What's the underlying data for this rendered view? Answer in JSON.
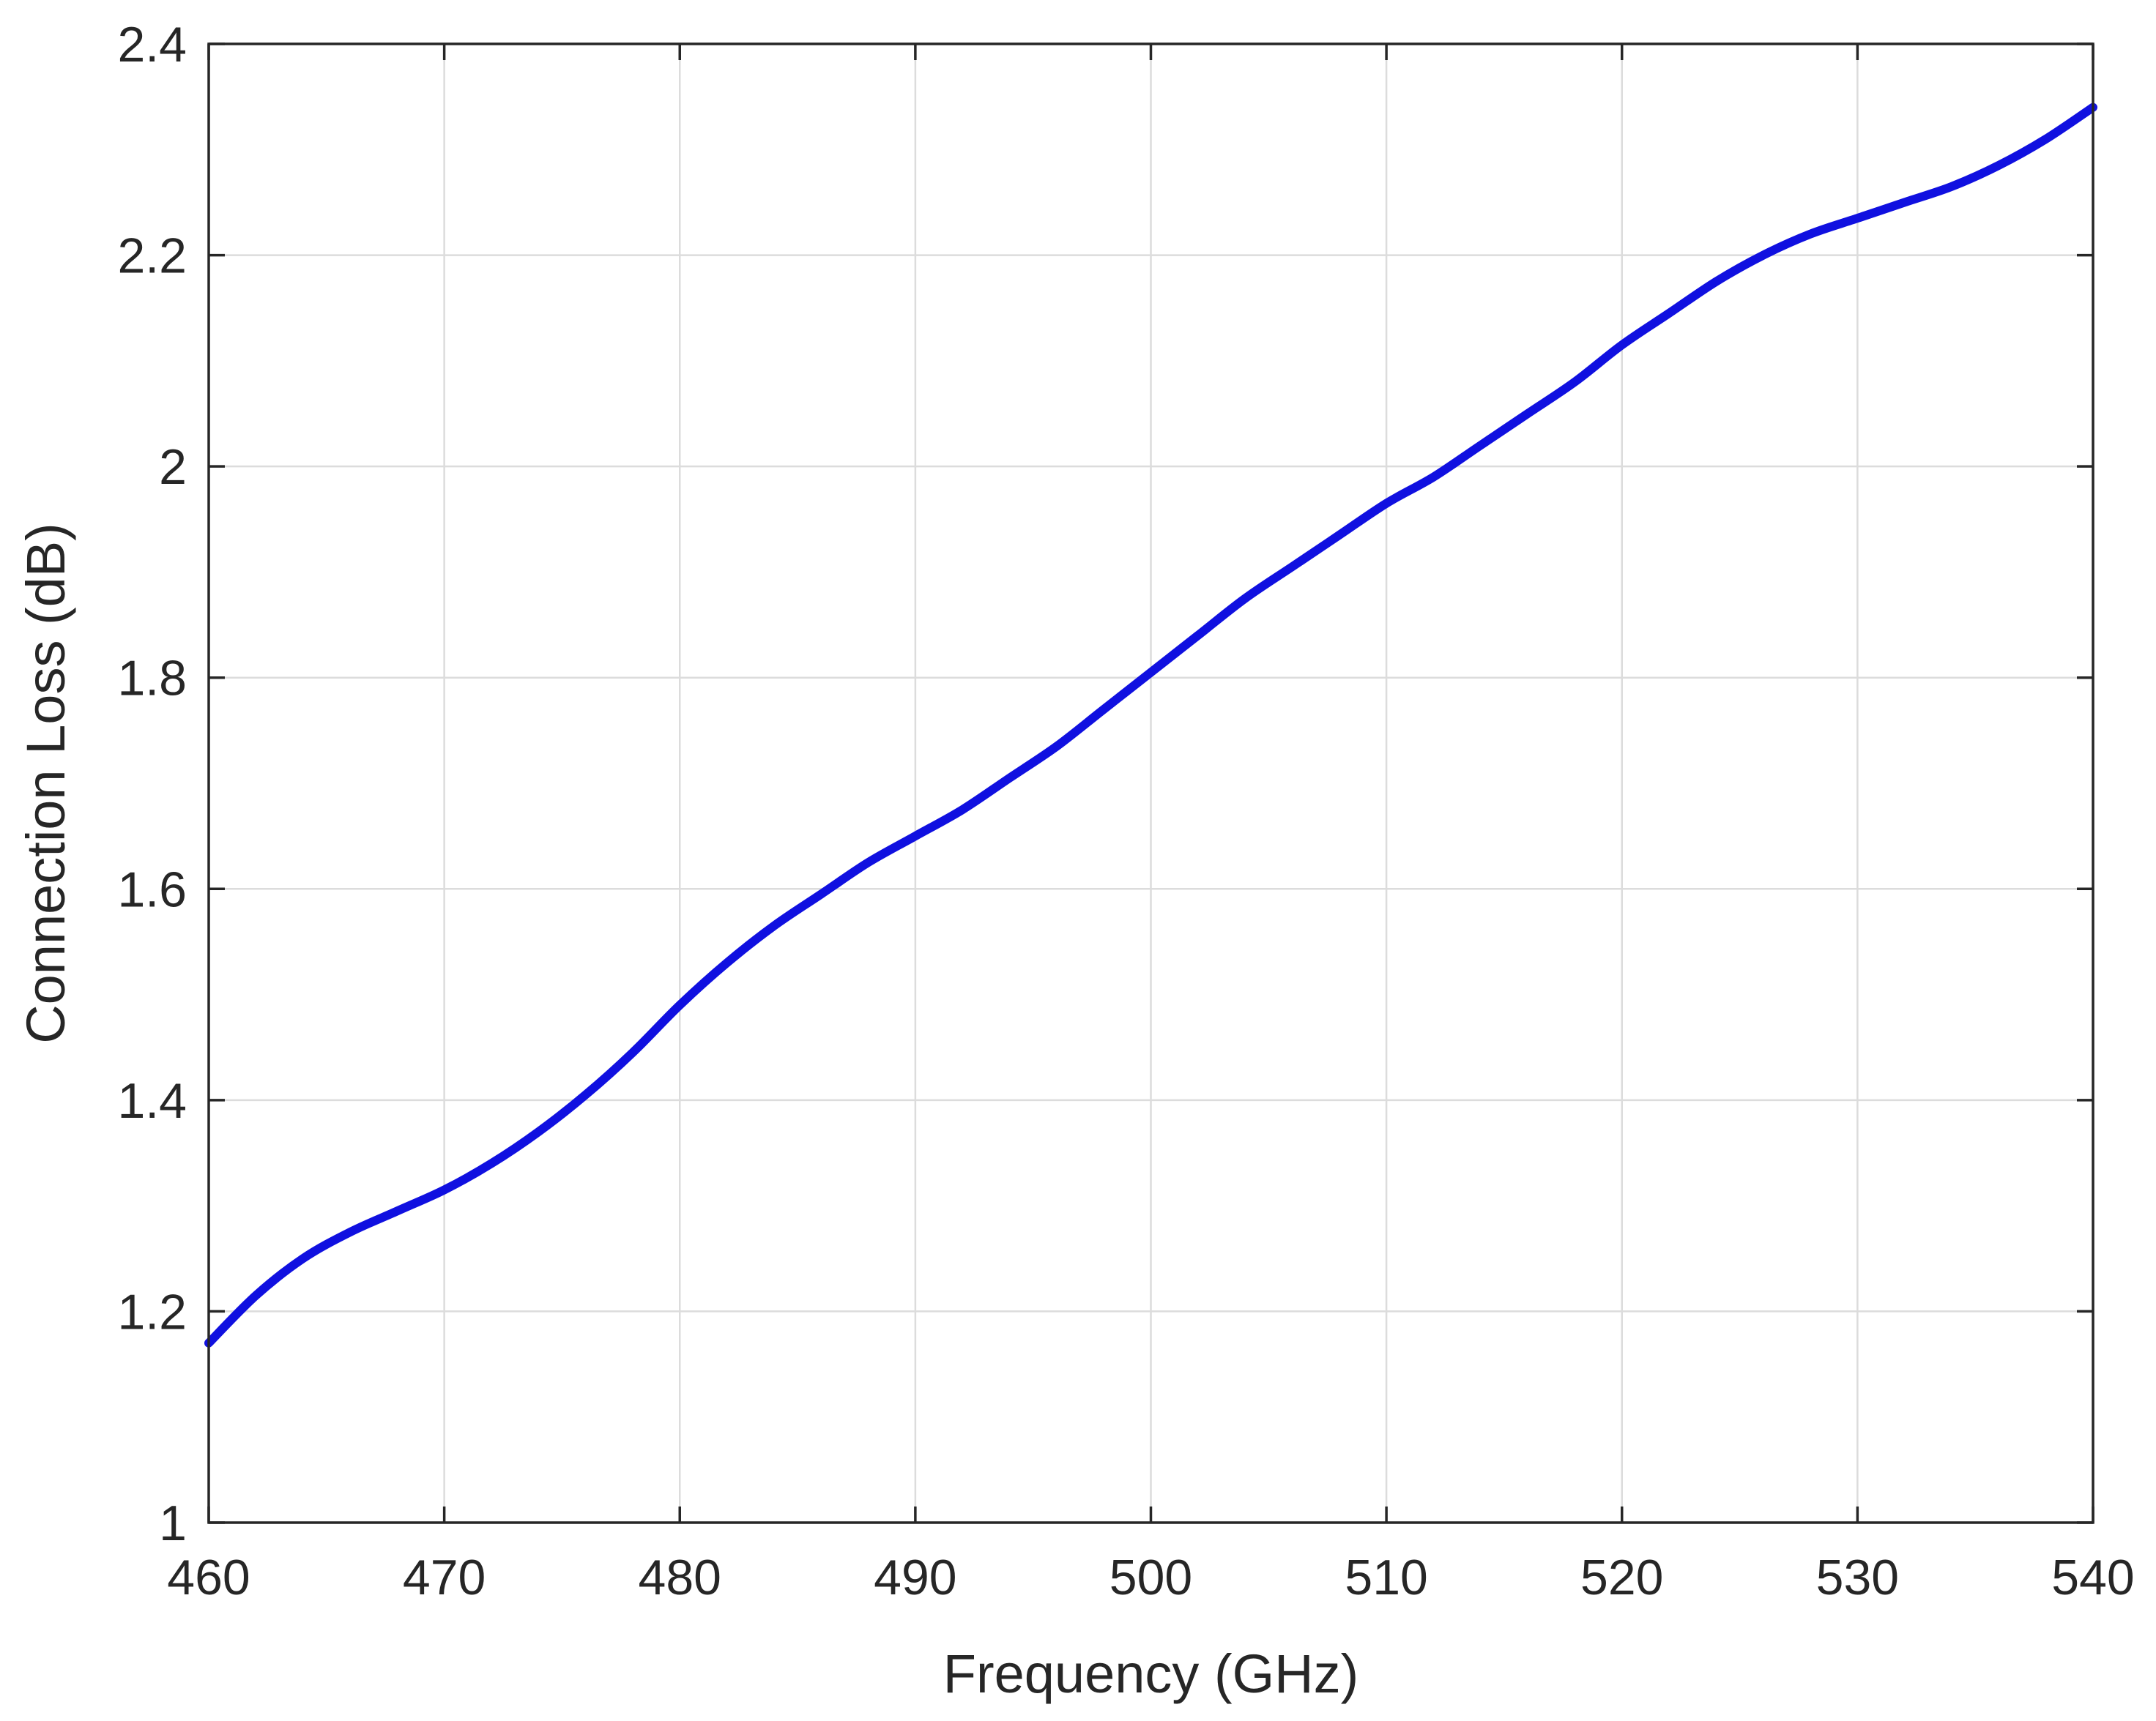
{
  "chart_data": {
    "type": "line",
    "title": "",
    "xlabel": "Frequency (GHz)",
    "ylabel": "Connection Loss (dB)",
    "xlim": [
      460,
      540
    ],
    "ylim": [
      1,
      2.4
    ],
    "xticks": [
      "460",
      "470",
      "480",
      "490",
      "500",
      "510",
      "520",
      "530",
      "540"
    ],
    "yticks": [
      "1",
      "1.2",
      "1.4",
      "1.6",
      "1.8",
      "2",
      "2.2",
      "2.4"
    ],
    "grid": true,
    "legend": "none",
    "series_color": "#1010e0",
    "series": [
      {
        "x": [
          460,
          462,
          464,
          466,
          468,
          470,
          472,
          474,
          476,
          478,
          480,
          482,
          484,
          486,
          488,
          490,
          492,
          494,
          496,
          498,
          500,
          502,
          504,
          506,
          508,
          510,
          512,
          514,
          516,
          518,
          520,
          522,
          524,
          526,
          528,
          530,
          532,
          534,
          536,
          538,
          540
        ],
        "y": [
          1.17,
          1.215,
          1.25,
          1.275,
          1.295,
          1.315,
          1.34,
          1.37,
          1.405,
          1.445,
          1.49,
          1.53,
          1.565,
          1.595,
          1.625,
          1.65,
          1.675,
          1.705,
          1.735,
          1.77,
          1.805,
          1.84,
          1.875,
          1.905,
          1.935,
          1.965,
          1.99,
          2.02,
          2.05,
          2.08,
          2.115,
          2.145,
          2.175,
          2.2,
          2.22,
          2.235,
          2.25,
          2.265,
          2.285,
          2.31,
          2.34
        ]
      }
    ]
  }
}
